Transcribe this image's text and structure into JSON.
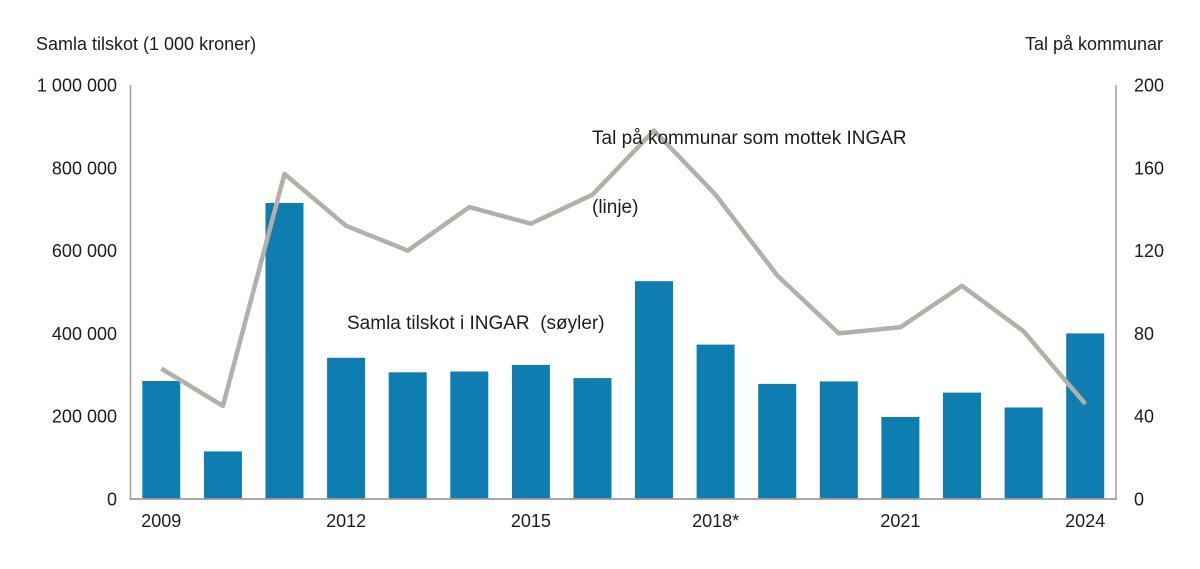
{
  "annotations": {
    "line_label_line1": "Tal på kommunar som mottek INGAR",
    "line_label_line2": "(linje)",
    "bar_label": "Samla tilskot i INGAR  (søyler)"
  },
  "colors": {
    "bar": "#0e7eb1",
    "line": "#b5afa8",
    "axis": "#9d9d9d",
    "text": "#1d1d1b"
  },
  "chart_data": {
    "type": "bar+line",
    "title": "",
    "categories": [
      "2009",
      "2010",
      "2011",
      "2012",
      "2013",
      "2014",
      "2015",
      "2016",
      "2017",
      "2018",
      "2019",
      "2020",
      "2021",
      "2022",
      "2023",
      "2024"
    ],
    "series": [
      {
        "name": "Samla tilskot i INGAR (søyler)",
        "type": "bar",
        "axis": "left",
        "color": "#0e7eb1",
        "values": [
          285000,
          115000,
          715000,
          341000,
          306000,
          308000,
          324000,
          292000,
          526000,
          373000,
          278000,
          284000,
          198000,
          257000,
          221000,
          400000
        ]
      },
      {
        "name": "Tal på kommunar som mottek INGAR (linje)",
        "type": "line",
        "axis": "right",
        "color": "#b5afa8",
        "values": [
          63,
          45,
          157,
          132,
          120,
          141,
          133,
          147,
          178,
          147,
          108,
          80,
          83,
          103,
          81,
          46
        ]
      }
    ],
    "left_axis": {
      "title": "Samla tilskot (1 000 kroner)",
      "min": 0,
      "max": 1000000,
      "tick_values": [
        0,
        200000,
        400000,
        600000,
        800000,
        1000000
      ],
      "tick_labels": [
        "0",
        "200 000",
        "400 000",
        "600 000",
        "800 000",
        "1 000 000"
      ]
    },
    "right_axis": {
      "title": "Tal på kommunar",
      "min": 0,
      "max": 200,
      "tick_values": [
        0,
        40,
        80,
        120,
        160,
        200
      ],
      "tick_labels": [
        "0",
        "40",
        "80",
        "120",
        "160",
        "200"
      ]
    },
    "x_ticks": [
      {
        "slot": 0,
        "label": "2009"
      },
      {
        "slot": 3,
        "label": "2012"
      },
      {
        "slot": 6,
        "label": "2015"
      },
      {
        "slot": 9,
        "label": "2018*"
      },
      {
        "slot": 12,
        "label": "2021"
      },
      {
        "slot": 15,
        "label": "2024"
      }
    ],
    "grid": false,
    "legend_position": "inline-annotations"
  }
}
